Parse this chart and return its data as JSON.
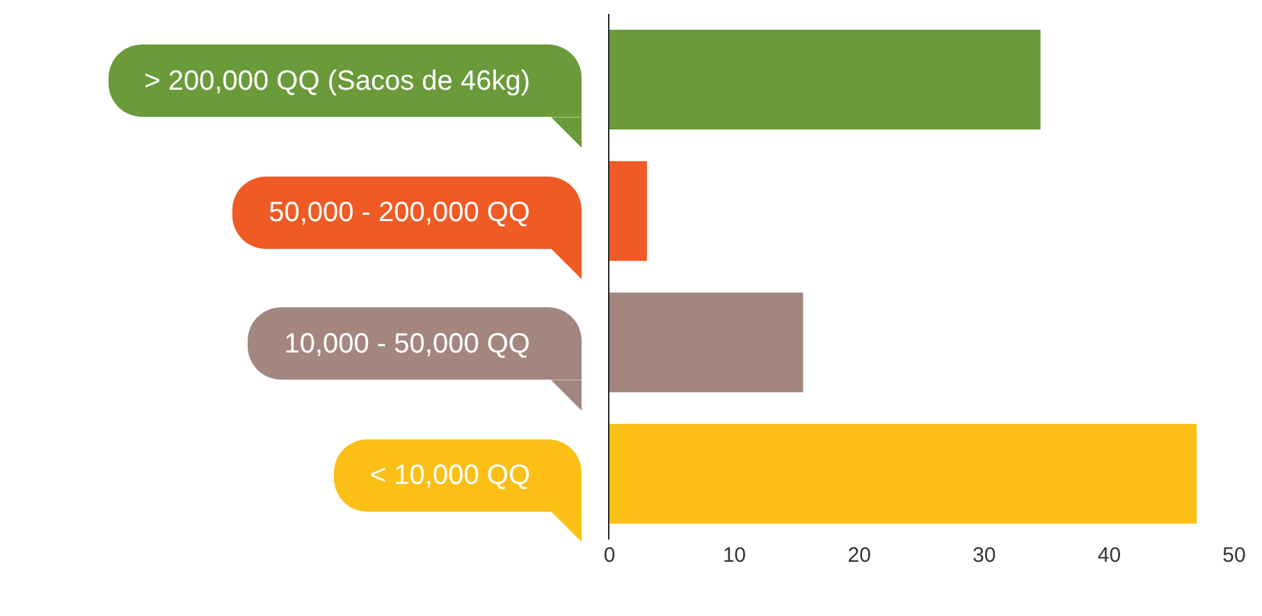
{
  "chart_data": {
    "type": "bar",
    "orientation": "horizontal",
    "categories": [
      "> 200,000 QQ (Sacos de 46kg)",
      "50,000 - 200,000 QQ",
      "10,000 - 50,000 QQ",
      "< 10,000 QQ"
    ],
    "values": [
      34.5,
      3,
      15.5,
      47
    ],
    "colors": [
      "#6a9a3a",
      "#f05a24",
      "#a3877e",
      "#fbbf16"
    ],
    "xlim": [
      0,
      50
    ],
    "xticks": [
      0,
      10,
      20,
      30,
      40,
      50
    ]
  }
}
